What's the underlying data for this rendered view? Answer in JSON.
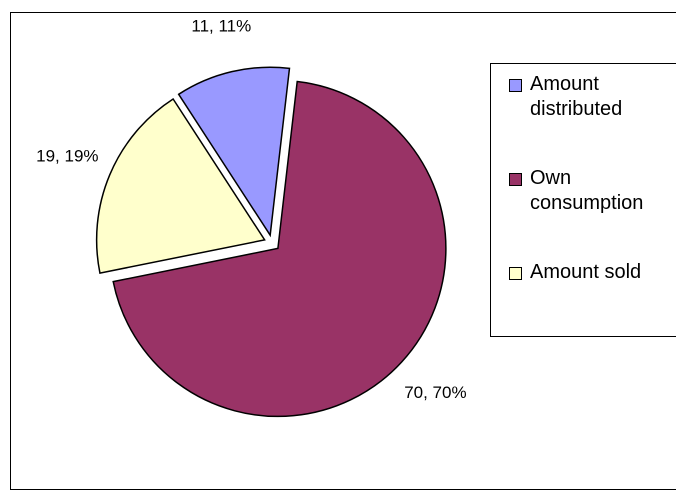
{
  "chart_data": {
    "type": "pie",
    "categories": [
      "Amount distributed",
      "Own consumption",
      "Amount sold"
    ],
    "values": [
      11,
      70,
      19
    ],
    "value_labels": [
      "11, 11%",
      "70, 70%",
      "19, 19%"
    ],
    "colors": [
      "#9999ff",
      "#993366",
      "#ffffcc"
    ],
    "legend": "right"
  }
}
